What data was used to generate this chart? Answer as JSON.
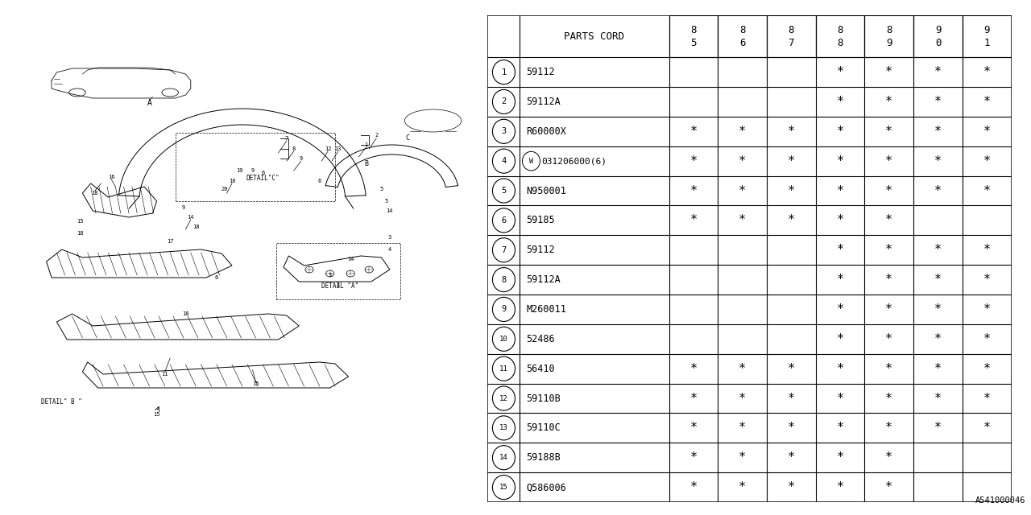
{
  "diagram_id": "A541000046",
  "bg_color": "#ffffff",
  "line_color": "#000000",
  "table": {
    "rows": [
      {
        "num": "1",
        "part": "59112",
        "w_prefix": false,
        "85": "",
        "86": "",
        "87": "",
        "88": "*",
        "89": "*",
        "90": "*",
        "91": "*"
      },
      {
        "num": "2",
        "part": "59112A",
        "w_prefix": false,
        "85": "",
        "86": "",
        "87": "",
        "88": "*",
        "89": "*",
        "90": "*",
        "91": "*"
      },
      {
        "num": "3",
        "part": "R60000X",
        "w_prefix": false,
        "85": "*",
        "86": "*",
        "87": "*",
        "88": "*",
        "89": "*",
        "90": "*",
        "91": "*"
      },
      {
        "num": "4",
        "part": "031206000(6)",
        "w_prefix": true,
        "85": "*",
        "86": "*",
        "87": "*",
        "88": "*",
        "89": "*",
        "90": "*",
        "91": "*"
      },
      {
        "num": "5",
        "part": "N950001",
        "w_prefix": false,
        "85": "*",
        "86": "*",
        "87": "*",
        "88": "*",
        "89": "*",
        "90": "*",
        "91": "*"
      },
      {
        "num": "6",
        "part": "59185",
        "w_prefix": false,
        "85": "*",
        "86": "*",
        "87": "*",
        "88": "*",
        "89": "*",
        "90": "",
        "91": ""
      },
      {
        "num": "7",
        "part": "59112",
        "w_prefix": false,
        "85": "",
        "86": "",
        "87": "",
        "88": "*",
        "89": "*",
        "90": "*",
        "91": "*"
      },
      {
        "num": "8",
        "part": "59112A",
        "w_prefix": false,
        "85": "",
        "86": "",
        "87": "",
        "88": "*",
        "89": "*",
        "90": "*",
        "91": "*"
      },
      {
        "num": "9",
        "part": "M260011",
        "w_prefix": false,
        "85": "",
        "86": "",
        "87": "",
        "88": "*",
        "89": "*",
        "90": "*",
        "91": "*"
      },
      {
        "num": "10",
        "part": "52486",
        "w_prefix": false,
        "85": "",
        "86": "",
        "87": "",
        "88": "*",
        "89": "*",
        "90": "*",
        "91": "*"
      },
      {
        "num": "11",
        "part": "56410",
        "w_prefix": false,
        "85": "*",
        "86": "*",
        "87": "*",
        "88": "*",
        "89": "*",
        "90": "*",
        "91": "*"
      },
      {
        "num": "12",
        "part": "59110B",
        "w_prefix": false,
        "85": "*",
        "86": "*",
        "87": "*",
        "88": "*",
        "89": "*",
        "90": "*",
        "91": "*"
      },
      {
        "num": "13",
        "part": "59110C",
        "w_prefix": false,
        "85": "*",
        "86": "*",
        "87": "*",
        "88": "*",
        "89": "*",
        "90": "*",
        "91": "*"
      },
      {
        "num": "14",
        "part": "59188B",
        "w_prefix": false,
        "85": "*",
        "86": "*",
        "87": "*",
        "88": "*",
        "89": "*",
        "90": "",
        "91": ""
      },
      {
        "num": "15",
        "part": "Q586006",
        "w_prefix": false,
        "85": "*",
        "86": "*",
        "87": "*",
        "88": "*",
        "89": "*",
        "90": "",
        "91": ""
      }
    ],
    "year_cols": [
      "85",
      "86",
      "87",
      "88",
      "89",
      "90",
      "91"
    ],
    "year_labels": [
      [
        "8",
        "5"
      ],
      [
        "8",
        "6"
      ],
      [
        "8",
        "7"
      ],
      [
        "8",
        "8"
      ],
      [
        "8",
        "9"
      ],
      [
        "9",
        "0"
      ],
      [
        "9",
        "1"
      ]
    ]
  }
}
